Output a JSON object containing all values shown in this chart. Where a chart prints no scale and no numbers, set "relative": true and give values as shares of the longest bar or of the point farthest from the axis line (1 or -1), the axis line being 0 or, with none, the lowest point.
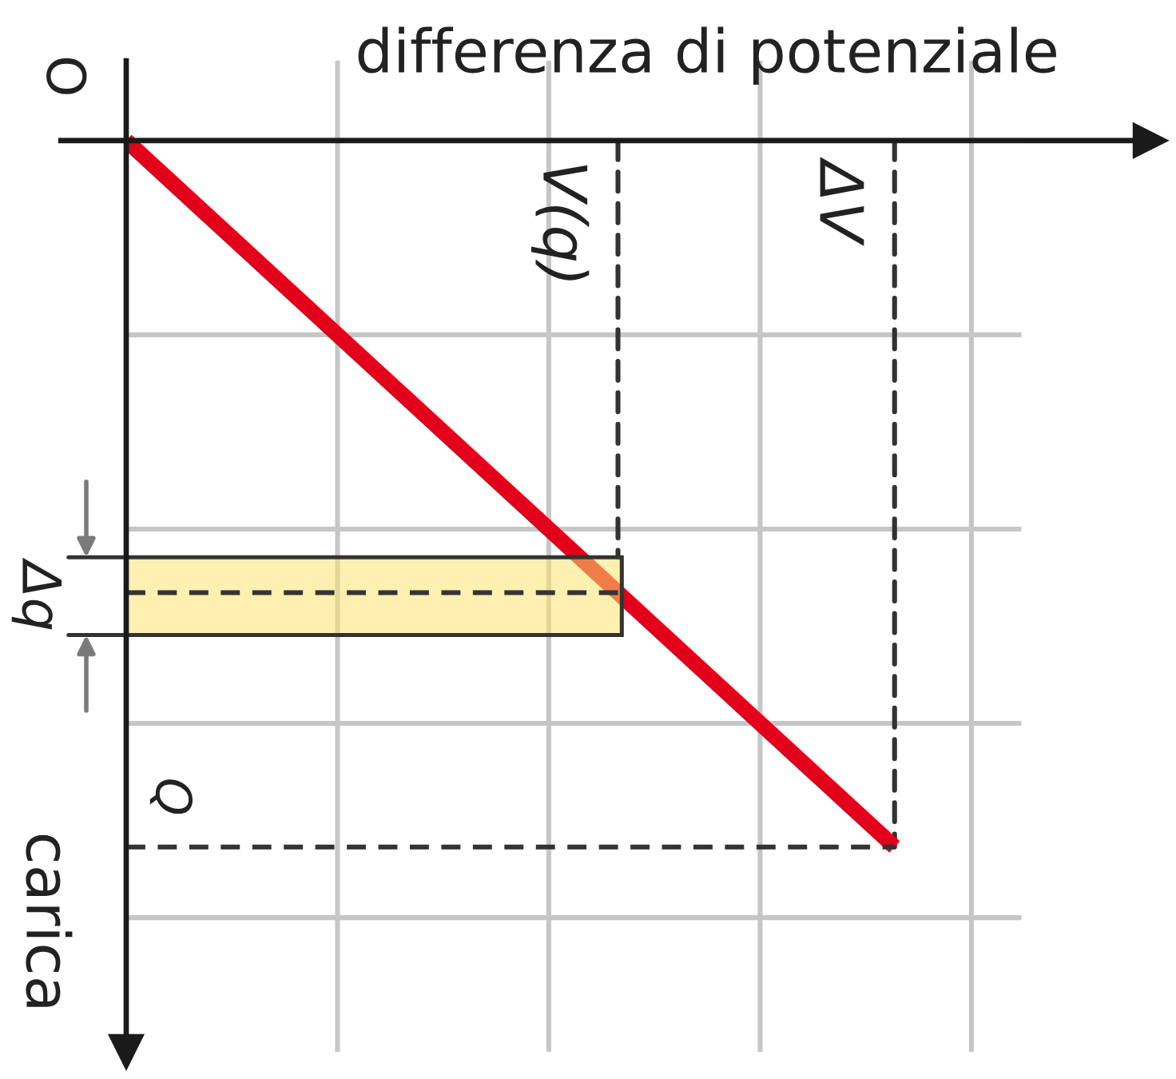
{
  "chart_data": {
    "type": "line",
    "relative": true,
    "categories": [
      null,
      null
    ],
    "values": [
      0,
      -1
    ],
    "color": "#e2001a",
    "xlabel": "differenza di potenziale",
    "ylabel": "carica",
    "grid": true,
    "ref_lines": [
      {
        "axis": "y",
        "value": -1,
        "label": "Q",
        "line_style": "dashed",
        "color": "#333333"
      },
      {
        "axis": "y",
        "value": -0.64,
        "line_style": "dashed",
        "color": "#333333"
      }
    ],
    "bands": [
      {
        "axis": "y",
        "from": -0.59,
        "to": -0.7,
        "label": "Δq",
        "color": "#fdf0b0"
      }
    ],
    "annotations": [
      "O",
      "V(q)",
      "ΔV"
    ]
  }
}
